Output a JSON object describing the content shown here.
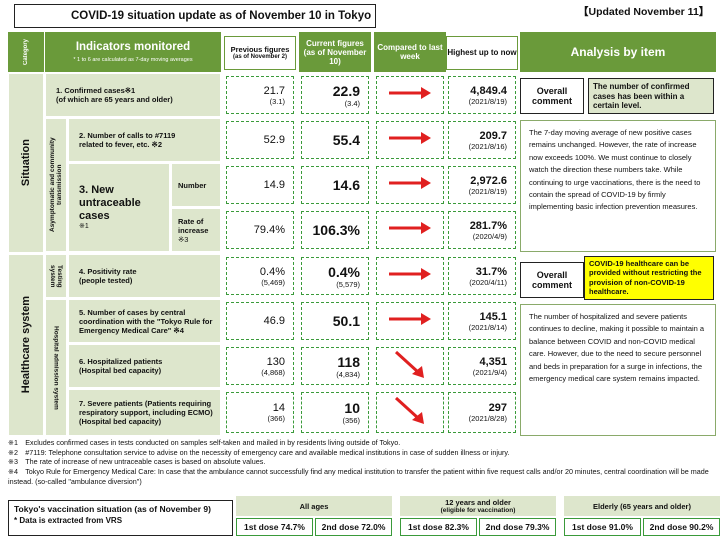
{
  "title": "COVID-19 situation update as of November 10 in Tokyo",
  "updated": "【Updated November 11】",
  "headers": {
    "category": "Category",
    "indicators": "Indicators monitored",
    "indicators_note": "* 1 to 6 are calculated as 7-day moving averages",
    "previous": "Previous figures",
    "previous_sub": "(as of November 2)",
    "current": "Current figures (as of November 10)",
    "compared": "Compared to last week",
    "highest": "Highest up to now",
    "analysis": "Analysis by item"
  },
  "categories": {
    "situation": "Situation",
    "healthcare": "Healthcare system",
    "asymptomatic": "Asymptomatic and community transmission",
    "testing": "Testing system",
    "hospital": "Hospital admission system"
  },
  "rows": [
    {
      "label": "1. Confirmed cases※1",
      "label2": "(of which are 65 years and older)",
      "prev": "21.7",
      "prev_sub": "(3.1)",
      "cur": "22.9",
      "cur_sub": "(3.4)",
      "high": "4,849.4",
      "high_date": "(2021/8/19)"
    },
    {
      "label": "2. Number of calls to #7119",
      "label2": "related to fever, etc. ※2",
      "prev": "52.9",
      "cur": "55.4",
      "high": "209.7",
      "high_date": "(2021/8/16)"
    },
    {
      "label": "Number",
      "prev": "14.9",
      "cur": "14.6",
      "high": "2,972.6",
      "high_date": "(2021/8/19)"
    },
    {
      "label": "Rate of increase",
      "label_sub": "※3",
      "prev": "79.4%",
      "cur": "106.3%",
      "high": "281.7%",
      "high_date": "(2020/4/9)"
    },
    {
      "label": "4. Positivity rate",
      "label2": "(people tested)",
      "prev": "0.4%",
      "prev_sub": "(5,469)",
      "cur": "0.4%",
      "cur_sub": "(5,579)",
      "high": "31.7%",
      "high_date": "(2020/4/11)"
    },
    {
      "label": "5. Number of cases by central coordination with the \"Tokyo Rule for Emergency Medical Care\" ※4",
      "prev": "46.9",
      "cur": "50.1",
      "high": "145.1",
      "high_date": "(2021/8/14)"
    },
    {
      "label": "6. Hospitalized patients",
      "label2": "(Hospital bed capacity)",
      "prev": "130",
      "prev_sub": "(4,868)",
      "cur": "118",
      "cur_sub": "(4,834)",
      "high": "4,351",
      "high_date": "(2021/9/4)"
    },
    {
      "label": "7. Severe patients (Patients requiring respiratory support, including ECMO)",
      "label2": "(Hospital bed capacity)",
      "prev": "14",
      "prev_sub": "(366)",
      "cur": "10",
      "cur_sub": "(356)",
      "high": "297",
      "high_date": "(2021/8/28)"
    }
  ],
  "new_untraceable": "3. New untraceable cases",
  "new_untraceable_note": "※1",
  "overall_label": "Overall comment",
  "situation_overall": "The number of confirmed cases has been within a certain level.",
  "situation_analysis": "The 7-day moving average of new positive cases remains unchanged. However, the rate of increase now exceeds 100%. We must continue to closely watch the direction these numbers take. While continuing to urge vaccinations, there is the need to contain the spread of COVID-19 by firmly implementing basic infection prevention measures.",
  "healthcare_overall": "COVID-19 healthcare can be provided without restricting the provision of non-COVID-19 healthcare.",
  "healthcare_analysis": "The number of hospitalized and severe patients continues to decline, making it possible to maintain a balance between COVID and non-COVID medical care. However, due to the need to secure personnel and beds in preparation for a surge in infections, the emergency medical care system remains impacted.",
  "notes": [
    "※1　Excludes confirmed cases in tests conducted on samples self-taken and mailed in by residents living outside of Tokyo.",
    "※2　#7119: Telephone consultation service to advise on the necessity of emergency care and available medical institutions in case of sudden illness or injury.",
    "※3　The rate of increase of new untraceable cases is based on absolute values.",
    "※4　Tokyo Rule for Emergency Medical Care: In case that the ambulance cannot successfully find any medical institution to transfer the patient within five request calls and/or 20 minutes, central coordination will be made instead. (so-called \"ambulance diversion\")"
  ],
  "vaccination": {
    "title": "Tokyo's vaccination situation (as of November 9)",
    "note": "* Data is extracted from VRS",
    "groups": [
      {
        "name": "All ages",
        "sub": "",
        "first": "1st dose 74.7%",
        "second": "2nd dose 72.0%"
      },
      {
        "name": "12 years and older",
        "sub": "(eligible for vaccination)",
        "first": "1st dose 82.3%",
        "second": "2nd dose 79.3%"
      },
      {
        "name": "Elderly (65 years and older)",
        "sub": "",
        "first": "1st dose 91.0%",
        "second": "2nd dose 90.2%"
      }
    ]
  },
  "colors": {
    "header_green": "#6a9a3a",
    "light_green": "#dde6cc",
    "arrow_red": "#e02020",
    "highlight": "#ffff00"
  }
}
